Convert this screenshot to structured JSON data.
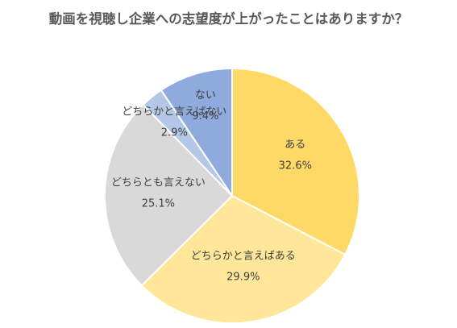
{
  "chart_data": {
    "type": "pie",
    "title": "動画を視聴し企業への志望度が上がったことはありますか？",
    "slices": [
      {
        "label": "ある",
        "value": 32.6,
        "display": "32.6%",
        "color": "#FFD966"
      },
      {
        "label": "どちらかと言えばある",
        "value": 29.9,
        "display": "29.9%",
        "color": "#FFE699"
      },
      {
        "label": "どちらとも言えない",
        "value": 25.1,
        "display": "25.1%",
        "color": "#D9D9D9"
      },
      {
        "label": "どちらかと言えばない",
        "value": 2.9,
        "display": "2.9%",
        "color": "#B4C7E7"
      },
      {
        "label": "ない",
        "value": 9.4,
        "display": "9.4%",
        "color": "#8FAADC"
      }
    ],
    "legend": "none",
    "start": "top",
    "direction": "clockwise"
  }
}
